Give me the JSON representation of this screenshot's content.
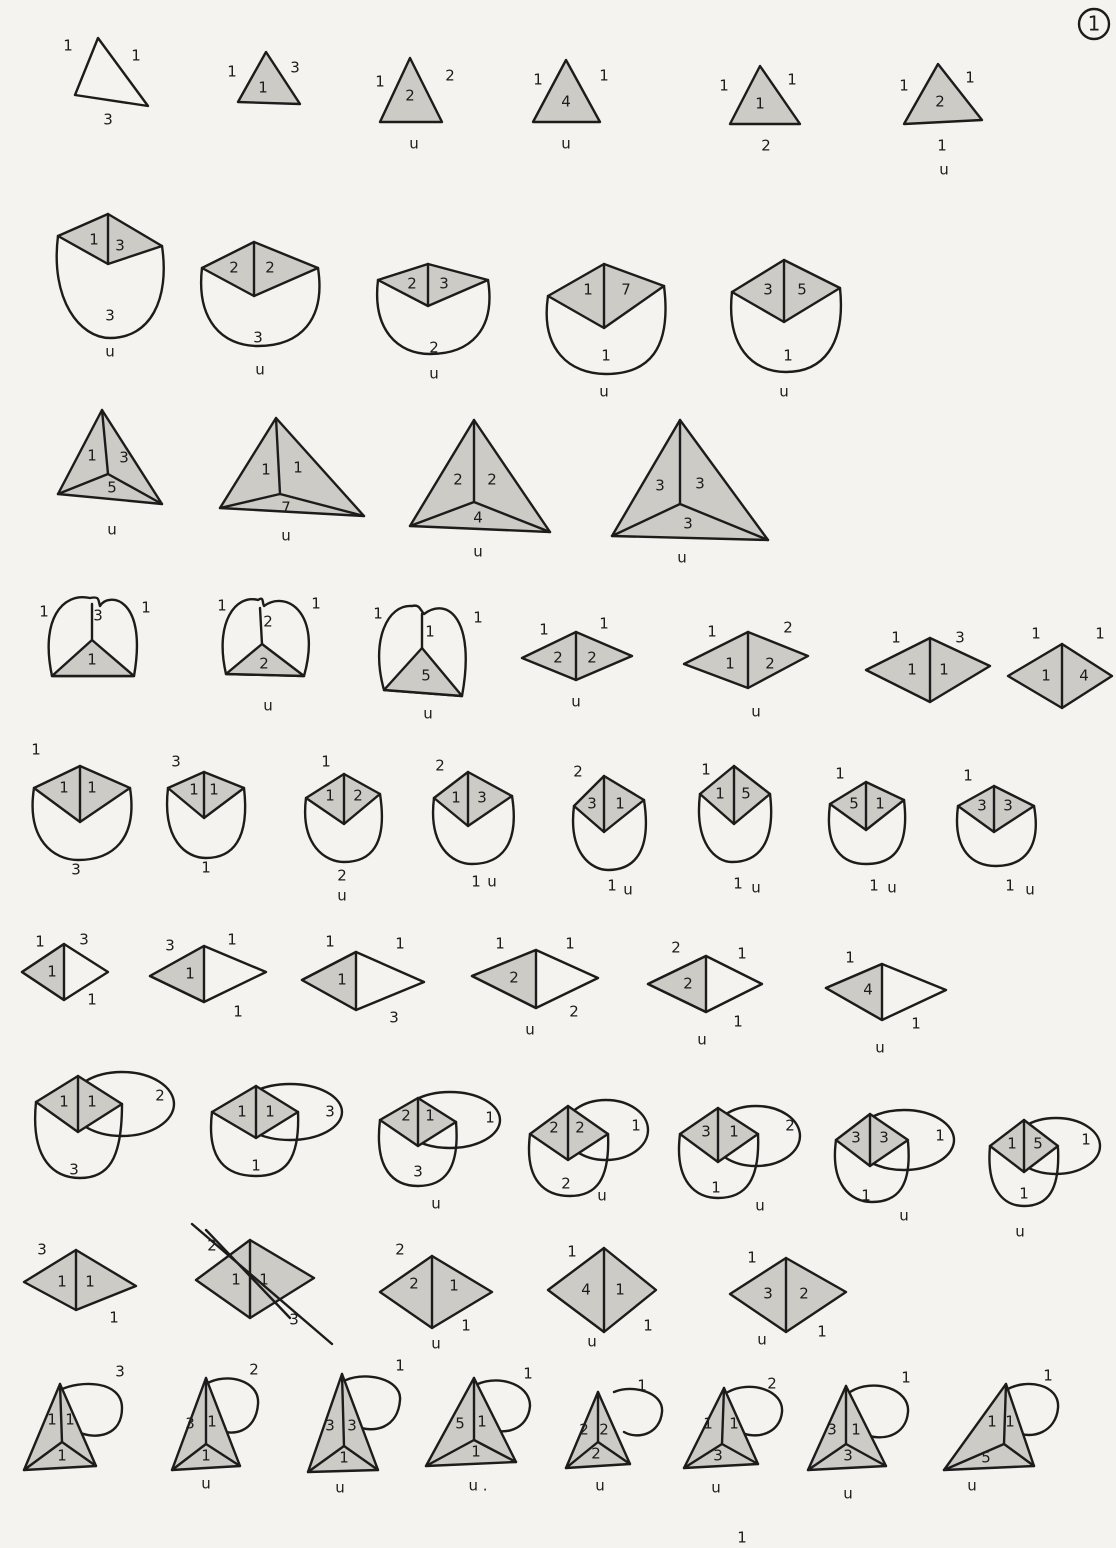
{
  "page_number": "1",
  "row1": {
    "f1": {
      "l": "1",
      "r": "1",
      "b": "3"
    },
    "f2": {
      "l": "1",
      "c": "1",
      "r": "3"
    },
    "f3": {
      "l": "1",
      "c": "2",
      "r": "2",
      "m": "u"
    },
    "f4": {
      "l": "1",
      "c": "4",
      "r": "1",
      "m": "u"
    },
    "f5": {
      "l": "1",
      "c": "1",
      "r": "1",
      "b": "2"
    },
    "f6": {
      "l": "1",
      "c": "2",
      "r": "1",
      "b": "1",
      "m": "u"
    }
  },
  "row2": [
    {
      "a": "1",
      "b": "3",
      "bot": "3",
      "m": "u"
    },
    {
      "a": "2",
      "b": "2",
      "bot": "3",
      "m": "u"
    },
    {
      "a": "2",
      "b": "3",
      "bot": "2",
      "m": "u"
    },
    {
      "a": "1",
      "b": "7",
      "bot": "1",
      "m": "u"
    },
    {
      "a": "3",
      "b": "5",
      "bot": "1",
      "m": "u"
    }
  ],
  "row3": [
    {
      "a": "1",
      "b": "3",
      "c": "5",
      "m": "u"
    },
    {
      "a": "1",
      "b": "1",
      "c": "7",
      "m": "u"
    },
    {
      "a": "2",
      "b": "2",
      "c": "4",
      "m": "u"
    },
    {
      "a": "3",
      "b": "3",
      "c": "3",
      "m": "u"
    }
  ],
  "row4": {
    "hearts": [
      {
        "l": "1",
        "r": "1",
        "top": "3",
        "bot": "1"
      },
      {
        "l": "1",
        "r": "1",
        "top": "2",
        "bot": "2",
        "m": "u"
      },
      {
        "l": "1",
        "r": "1",
        "top": "1",
        "bot": "5",
        "m": "u"
      }
    ],
    "diamonds": [
      {
        "l": "1",
        "r": "1",
        "a": "2",
        "b": "2",
        "m": "u"
      },
      {
        "l": "1",
        "r": "2",
        "a": "1",
        "b": "2",
        "m": "u"
      },
      {
        "l": "1",
        "r": "3",
        "a": "1",
        "b": "1"
      },
      {
        "l": "1",
        "r": "1",
        "a": "1",
        "b": "4"
      }
    ]
  },
  "row5": [
    {
      "a": "1",
      "b": "1",
      "out": "1",
      "bot": "3"
    },
    {
      "a": "1",
      "b": "1",
      "out": "3",
      "bot": "1"
    },
    {
      "a": "1",
      "b": "2",
      "out": "1",
      "bot": "2",
      "m": "u"
    },
    {
      "a": "1",
      "b": "3",
      "out": "2",
      "bot": "1",
      "m": "u"
    },
    {
      "a": "3",
      "b": "1",
      "out": "2",
      "bot": "1",
      "m": "u"
    },
    {
      "a": "1",
      "b": "5",
      "out": "1",
      "bot": "1",
      "m": "u"
    },
    {
      "a": "5",
      "b": "1",
      "out": "1",
      "bot": "1",
      "m": "u"
    },
    {
      "a": "3",
      "b": "3",
      "out": "1",
      "bot": "1",
      "m": "u"
    }
  ],
  "row6": [
    {
      "c": "1",
      "tl": "1",
      "tr": "3",
      "br": "1"
    },
    {
      "c": "1",
      "tl": "3",
      "tr": "1",
      "br": "1"
    },
    {
      "c": "1",
      "tl": "1",
      "tr": "1",
      "br": "3"
    },
    {
      "c": "2",
      "tl": "1",
      "tr": "1",
      "br": "2",
      "m": "u"
    },
    {
      "c": "2",
      "tl": "2",
      "tr": "1",
      "br": "1",
      "m": "u"
    },
    {
      "c": "4",
      "tl": "1",
      "tr": "",
      "br": "1",
      "m": "u"
    }
  ],
  "row7": [
    {
      "a": "1",
      "b": "1",
      "loop": "2",
      "bot": "3"
    },
    {
      "a": "1",
      "b": "1",
      "loop": "3",
      "bot": "1"
    },
    {
      "a": "2",
      "b": "1",
      "loop": "1",
      "bot": "3",
      "m": "u"
    },
    {
      "a": "2",
      "b": "2",
      "loop": "1",
      "bot": "2",
      "m": "u"
    },
    {
      "a": "3",
      "b": "1",
      "loop": "2",
      "bot": "1",
      "m": "u"
    },
    {
      "a": "3",
      "b": "3",
      "loop": "1",
      "bot": "1",
      "m": "u"
    },
    {
      "a": "1",
      "b": "5",
      "loop": "1",
      "bot": "1",
      "m": "u"
    }
  ],
  "row8": [
    {
      "a": "1",
      "b": "1",
      "tl": "3",
      "br": "1"
    },
    {
      "a": "1",
      "b": "1",
      "tl": "2",
      "br": "3"
    },
    {
      "a": "2",
      "b": "1",
      "tl": "2",
      "br": "1",
      "m": "u"
    },
    {
      "a": "4",
      "b": "1",
      "tl": "1",
      "br": "1",
      "m": "u"
    },
    {
      "a": "3",
      "b": "2",
      "tl": "1",
      "br": "1",
      "m": "u"
    }
  ],
  "row9": [
    {
      "a": "1",
      "b": "1",
      "c": "1",
      "loop": "3"
    },
    {
      "a": "3",
      "b": "1",
      "c": "1",
      "loop": "2",
      "m": "u"
    },
    {
      "a": "3",
      "b": "3",
      "c": "1",
      "loop": "1",
      "m": "u"
    },
    {
      "a": "5",
      "b": "1",
      "c": "1",
      "loop": "1",
      "m": "u ."
    },
    {
      "a": "2",
      "b": "2",
      "c": "2",
      "loop": "1",
      "m": "u"
    },
    {
      "a": "1",
      "b": "1",
      "c": "3",
      "loop": "2",
      "m": "u"
    },
    {
      "a": "3",
      "b": "1",
      "c": "3",
      "loop": "1",
      "m": "u"
    },
    {
      "a": "1",
      "b": "1",
      "c": "5",
      "loop": "1",
      "m": "u"
    }
  ],
  "stray_mark": "1"
}
